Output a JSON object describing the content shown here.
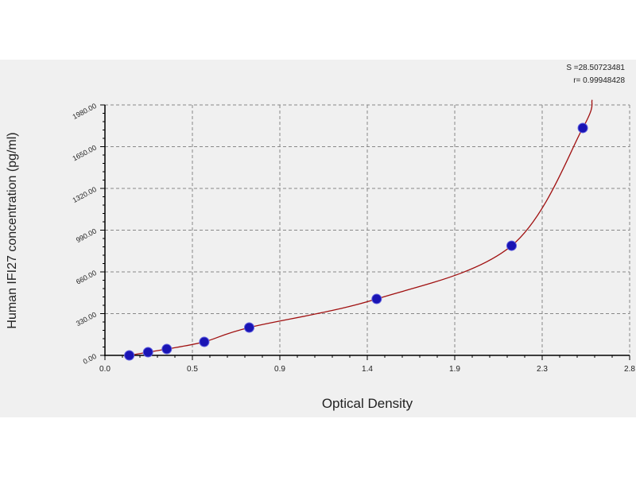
{
  "chart_data": {
    "type": "scatter",
    "title": "",
    "xlabel": "Optical Density",
    "ylabel": "Human  IFI27 concentration (pg/ml)",
    "xlim": [
      0.0,
      2.8
    ],
    "ylim": [
      0,
      1980
    ],
    "x_ticks": [
      "0.0",
      "0.5",
      "0.9",
      "1.4",
      "1.9",
      "2.3",
      "2.8"
    ],
    "x_tick_values": [
      0.0,
      0.4667,
      0.9333,
      1.4,
      1.8667,
      2.3333,
      2.8
    ],
    "y_ticks": [
      "0.00",
      "330.00",
      "660.00",
      "990.00",
      "1320.00",
      "1650.00",
      "1980.00"
    ],
    "y_tick_values": [
      0,
      330,
      660,
      990,
      1320,
      1650,
      1980
    ],
    "grid": true,
    "points": [
      {
        "x": 0.13,
        "y": 0
      },
      {
        "x": 0.23,
        "y": 25
      },
      {
        "x": 0.33,
        "y": 50
      },
      {
        "x": 0.53,
        "y": 107
      },
      {
        "x": 0.77,
        "y": 220
      },
      {
        "x": 1.45,
        "y": 446
      },
      {
        "x": 2.17,
        "y": 867
      },
      {
        "x": 2.55,
        "y": 1798
      }
    ],
    "fit_curve_end": {
      "x": 2.6,
      "y": 2020
    },
    "point_color": "#1a14b4",
    "curve_color": "#a01010",
    "annotations": [
      "S =28.50723481",
      "r= 0.99948428"
    ]
  }
}
